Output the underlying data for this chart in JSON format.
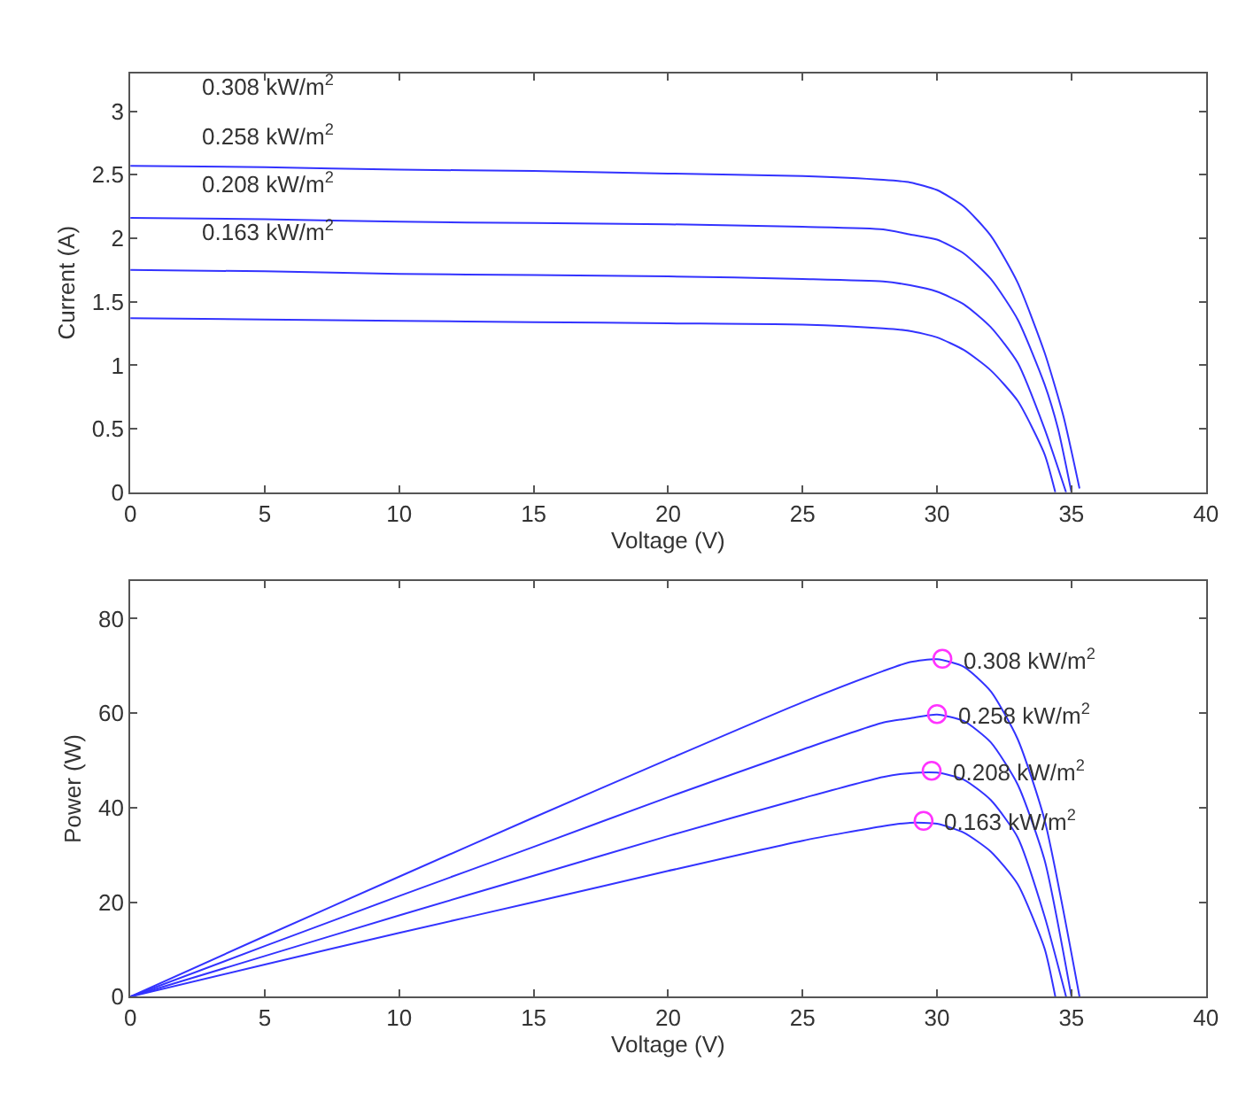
{
  "chart_data": [
    {
      "type": "line",
      "xlabel": "Voltage (V)",
      "ylabel": "Current (A)",
      "xlim": [
        0,
        40
      ],
      "xticks": [
        0,
        5,
        10,
        15,
        20,
        25,
        30,
        35,
        40
      ],
      "ylim": [
        0,
        3.3
      ],
      "yticks": [
        0,
        0.5,
        1,
        1.5,
        2,
        2.5,
        3
      ],
      "marker": "none",
      "line_style": "solid",
      "annotations": [
        "0.308 kW/m$^{2}$",
        "0.258 kW/m$^{2}$",
        "0.208 kW/m$^{2}$",
        "0.163 kW/m$^{2}$"
      ],
      "series": [
        {
          "color": "#3333ff",
          "x": [
            0,
            5,
            10,
            15,
            20,
            25,
            28,
            29,
            30,
            31,
            32,
            33,
            34,
            34.7,
            35.3
          ],
          "values": [
            2.57,
            2.56,
            2.54,
            2.53,
            2.51,
            2.49,
            2.46,
            2.44,
            2.38,
            2.25,
            2.02,
            1.65,
            1.1,
            0.6,
            0.03
          ]
        },
        {
          "color": "#3333ff",
          "x": [
            0,
            5,
            10,
            15,
            20,
            25,
            28,
            29,
            30,
            31,
            32,
            33,
            34,
            34.5,
            35.0
          ],
          "values": [
            2.16,
            2.15,
            2.13,
            2.12,
            2.11,
            2.09,
            2.07,
            2.03,
            1.99,
            1.88,
            1.68,
            1.36,
            0.85,
            0.5,
            0
          ]
        },
        {
          "color": "#3333ff",
          "x": [
            0,
            5,
            10,
            15,
            20,
            25,
            28,
            29,
            30,
            31,
            32,
            33,
            34,
            34.8
          ],
          "values": [
            1.75,
            1.74,
            1.72,
            1.71,
            1.7,
            1.68,
            1.66,
            1.63,
            1.58,
            1.48,
            1.3,
            1.02,
            0.5,
            0
          ]
        },
        {
          "color": "#3333ff",
          "x": [
            0,
            5,
            10,
            15,
            20,
            25,
            28,
            29,
            30,
            31,
            32,
            33,
            34,
            34.4
          ],
          "values": [
            1.37,
            1.36,
            1.35,
            1.34,
            1.33,
            1.32,
            1.29,
            1.27,
            1.22,
            1.12,
            0.96,
            0.72,
            0.3,
            0
          ]
        }
      ]
    },
    {
      "type": "line",
      "xlabel": "Voltage (V)",
      "ylabel": "Power (W)",
      "xlim": [
        0,
        40
      ],
      "xticks": [
        0,
        5,
        10,
        15,
        20,
        25,
        30,
        35,
        40
      ],
      "ylim": [
        0,
        88
      ],
      "yticks": [
        0,
        20,
        40,
        60,
        80
      ],
      "marker": "none",
      "line_style": "solid",
      "annotations": [
        {
          "text": "0.308 kW/m$^{2}$",
          "x": 30.2,
          "y": 71.5
        },
        {
          "text": "0.258 kW/m$^{2}$",
          "x": 30.0,
          "y": 59.8
        },
        {
          "text": "0.208 kW/m$^{2}$",
          "x": 29.8,
          "y": 47.8
        },
        {
          "text": "0.163 kW/m$^{2}$",
          "x": 29.5,
          "y": 37.2
        }
      ],
      "series": [
        {
          "color": "#3333ff",
          "x": [
            0,
            5,
            10,
            15,
            20,
            25,
            28,
            29,
            30,
            31,
            32,
            33,
            34,
            35.3
          ],
          "values": [
            0,
            12.8,
            25.4,
            37.9,
            50.2,
            62.3,
            68.9,
            70.8,
            71.4,
            69.8,
            64.6,
            54.5,
            37.4,
            0
          ]
        },
        {
          "color": "#3333ff",
          "x": [
            0,
            5,
            10,
            15,
            20,
            25,
            28,
            29,
            30,
            31,
            32,
            33,
            34,
            35.0
          ],
          "values": [
            0,
            10.7,
            21.3,
            31.7,
            42.2,
            52.3,
            58,
            58.9,
            59.7,
            58.3,
            53.8,
            44.9,
            28.9,
            0
          ]
        },
        {
          "color": "#3333ff",
          "x": [
            0,
            5,
            10,
            15,
            20,
            25,
            28,
            29,
            30,
            31,
            32,
            33,
            34,
            34.8
          ],
          "values": [
            0,
            8.6,
            17.2,
            25.6,
            34,
            42,
            46.5,
            47.3,
            47.4,
            45.9,
            41.6,
            33.7,
            17,
            0
          ]
        },
        {
          "color": "#3333ff",
          "x": [
            0,
            5,
            10,
            15,
            20,
            25,
            28,
            29,
            30,
            31,
            32,
            33,
            34,
            34.4
          ],
          "values": [
            0,
            6.8,
            13.5,
            20,
            26.6,
            33,
            36.1,
            36.8,
            36.6,
            34.7,
            30.7,
            23.8,
            10.2,
            0
          ]
        },
        {
          "type": "scatter",
          "color": "#ff33ff",
          "marker": "circle",
          "x": [
            30.2,
            30.0,
            29.8,
            29.5
          ],
          "values": [
            71.5,
            59.8,
            47.8,
            37.2
          ]
        }
      ]
    }
  ]
}
